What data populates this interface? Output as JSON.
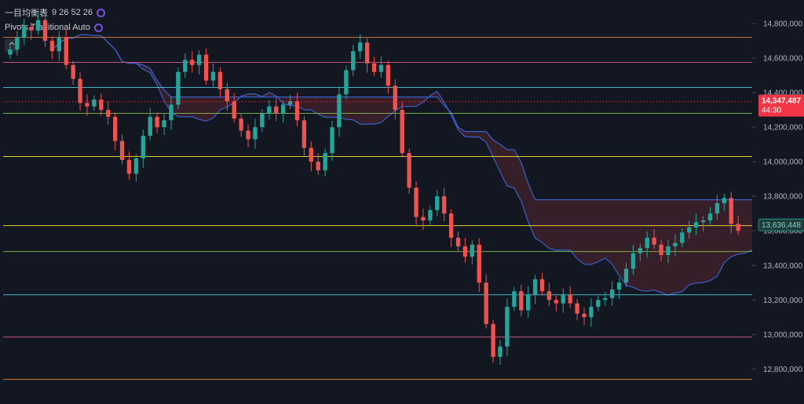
{
  "indicators": [
    {
      "label": "一目均衡表",
      "params": "9 26 52 26"
    },
    {
      "label": "Pivots Traditional Auto",
      "params": ""
    }
  ],
  "collapse_icon": "chevron-up-icon",
  "colors": {
    "background": "#131722",
    "up": "#26a69a",
    "down": "#ef5350",
    "cloud_line": "#3a5fcd",
    "last_price_badge": "#f23645",
    "current_price_badge": "#1f3b3a"
  },
  "chart_data": {
    "type": "candlestick",
    "ylim": [
      12620000,
      14900000
    ],
    "y_ticks": [
      {
        "value": 14800000,
        "label": "14,800,000"
      },
      {
        "value": 14600000,
        "label": "14,600,000"
      },
      {
        "value": 14400000,
        "label": "14,400,000"
      },
      {
        "value": 14200000,
        "label": "14,200,000"
      },
      {
        "value": 14000000,
        "label": "14,000,000"
      },
      {
        "value": 13800000,
        "label": "13,800,000"
      },
      {
        "value": 13600000,
        "label": "13,600,000"
      },
      {
        "value": 13400000,
        "label": "13,400,000"
      },
      {
        "value": 13200000,
        "label": "13,200,000"
      },
      {
        "value": 13000000,
        "label": "13,000,000"
      },
      {
        "value": 12800000,
        "label": "12,800,000"
      }
    ],
    "pivot_levels": [
      {
        "value": 14720000,
        "color": "#f0883e"
      },
      {
        "value": 14575000,
        "color": "#e05c8a"
      },
      {
        "value": 14430000,
        "color": "#4dd0e1"
      },
      {
        "value": 14280000,
        "color": "#8bc34a"
      },
      {
        "value": 14030000,
        "color": "#ffeb3b"
      },
      {
        "value": 13630000,
        "color": "#ffeb3b"
      },
      {
        "value": 13480000,
        "color": "#8bc34a"
      },
      {
        "value": 13230000,
        "color": "#4dd0e1"
      },
      {
        "value": 12985000,
        "color": "#e05c8a"
      },
      {
        "value": 12740000,
        "color": "#f0883e"
      }
    ],
    "last_price": {
      "value": 14347487,
      "label": "14,347,487",
      "countdown": "44:30"
    },
    "current_price": {
      "value": 13636448,
      "label": "13,636,448"
    },
    "closes": [
      14650000,
      14720000,
      14780000,
      14760000,
      14820000,
      14700000,
      14640000,
      14720000,
      14560000,
      14480000,
      14340000,
      14320000,
      14360000,
      14300000,
      14260000,
      14120000,
      14010000,
      13930000,
      14020000,
      14150000,
      14260000,
      14200000,
      14240000,
      14330000,
      14520000,
      14590000,
      14560000,
      14620000,
      14470000,
      14520000,
      14420000,
      14350000,
      14250000,
      14180000,
      14130000,
      14200000,
      14280000,
      14320000,
      14280000,
      14330000,
      14350000,
      14240000,
      14080000,
      14000000,
      13950000,
      14050000,
      14200000,
      14390000,
      14530000,
      14640000,
      14690000,
      14570000,
      14520000,
      14560000,
      14440000,
      14300000,
      14050000,
      13850000,
      13680000,
      13660000,
      13720000,
      13800000,
      13700000,
      13560000,
      13510000,
      13450000,
      13520000,
      13300000,
      13060000,
      12870000,
      12930000,
      13160000,
      13250000,
      13140000,
      13230000,
      13320000,
      13250000,
      13200000,
      13180000,
      13230000,
      13180000,
      13120000,
      13100000,
      13160000,
      13200000,
      13210000,
      13260000,
      13300000,
      13380000,
      13470000,
      13500000,
      13560000,
      13520000,
      13460000,
      13510000,
      13530000,
      13590000,
      13620000,
      13650000,
      13660000,
      13700000,
      13760000,
      13790000,
      13640000,
      13600000
    ],
    "series": [
      {
        "name": "",
        "style": "cloud-span-a"
      },
      {
        "name": "",
        "style": "cloud-span-b"
      }
    ]
  }
}
